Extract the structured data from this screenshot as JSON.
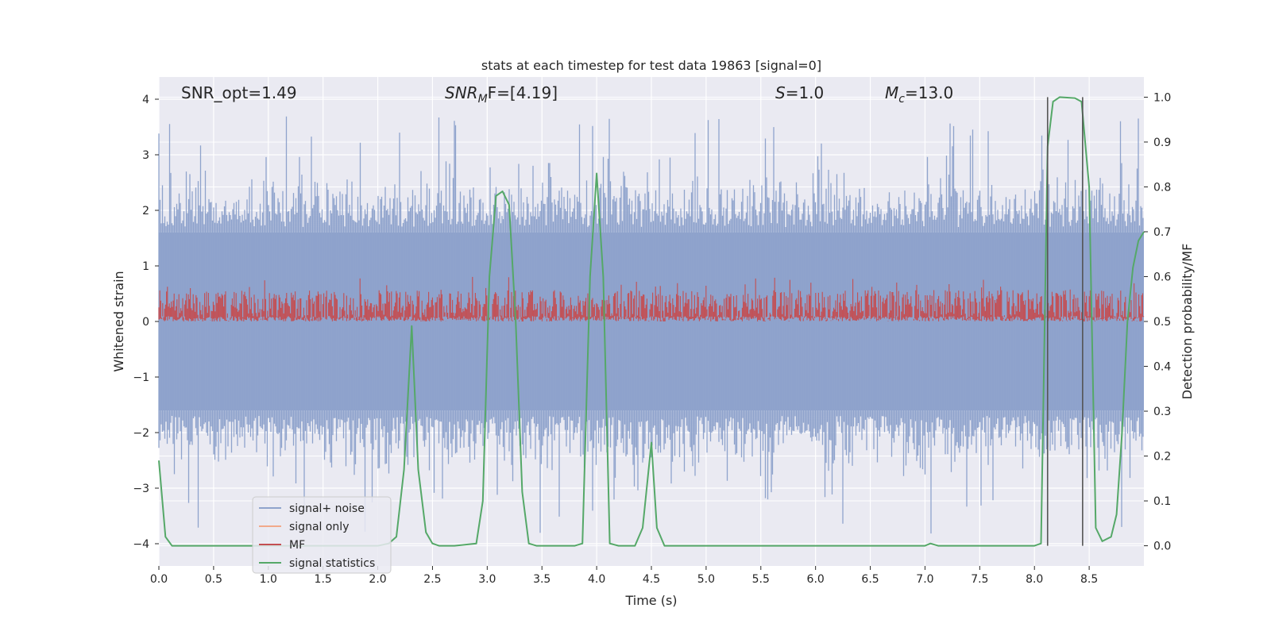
{
  "chart_data": {
    "type": "line",
    "title": "stats at each timestep for test data 19863 [signal=0]",
    "xlabel": "Time (s)",
    "ylabel": "Whitened strain",
    "y2label": "Detection probability/MF",
    "xlim": [
      0,
      9
    ],
    "ylim": [
      -4.4,
      4.4
    ],
    "y2lim": [
      -0.045,
      1.045
    ],
    "xticks": [
      0.0,
      0.5,
      1.0,
      1.5,
      2.0,
      2.5,
      3.0,
      3.5,
      4.0,
      4.5,
      5.0,
      5.5,
      6.0,
      6.5,
      7.0,
      7.5,
      8.0,
      8.5
    ],
    "xtick_labels": [
      "0.0",
      "0.5",
      "1.0",
      "1.5",
      "2.0",
      "2.5",
      "3.0",
      "3.5",
      "4.0",
      "4.5",
      "5.0",
      "5.5",
      "6.0",
      "6.5",
      "7.0",
      "7.5",
      "8.0",
      "8.5"
    ],
    "yticks": [
      4,
      3,
      2,
      1,
      0,
      -1,
      -2,
      -3,
      -4
    ],
    "ytick_labels": [
      "4",
      "3",
      "2",
      "1",
      "0",
      "−1",
      "−2",
      "−3",
      "−4"
    ],
    "y2ticks": [
      1.0,
      0.9,
      0.8,
      0.7,
      0.6,
      0.5,
      0.4,
      0.3,
      0.2,
      0.1,
      0.0
    ],
    "y2tick_labels": [
      "1.0",
      "0.9",
      "0.8",
      "0.7",
      "0.6",
      "0.5",
      "0.4",
      "0.3",
      "0.2",
      "0.1",
      "0.0"
    ],
    "annotations": {
      "snr_opt": "SNR_opt=1.49",
      "snr_mf_main": "SNR",
      "snr_mf_sub": "M",
      "snr_mf_rest": "F=[4.19]",
      "s_main": "S",
      "s_rest": "=1.0",
      "mc_main": "M",
      "mc_sub": "c",
      "mc_rest": "=13.0"
    },
    "legend": [
      {
        "label": "signal+ noise",
        "color": "#8fa3cc"
      },
      {
        "label": "signal only",
        "color": "#f2a98a"
      },
      {
        "label": "MF",
        "color": "#c44e52"
      },
      {
        "label": "signal statistics",
        "color": "#55a868"
      }
    ],
    "legend_position": "lower-left",
    "series": [
      {
        "name": "signal statistics",
        "axis": "right",
        "color": "#55a868",
        "x": [
          0.0,
          0.06,
          0.12,
          0.18,
          0.5,
          1.0,
          1.5,
          2.0,
          2.1,
          2.17,
          2.24,
          2.31,
          2.37,
          2.44,
          2.5,
          2.56,
          2.7,
          2.9,
          2.96,
          3.02,
          3.08,
          3.14,
          3.2,
          3.26,
          3.32,
          3.38,
          3.45,
          3.5,
          3.8,
          3.87,
          3.94,
          4.0,
          4.06,
          4.12,
          4.2,
          4.35,
          4.42,
          4.5,
          4.55,
          4.62,
          5.0,
          6.0,
          7.0,
          7.05,
          7.12,
          7.2,
          8.0,
          8.06,
          8.12,
          8.17,
          8.23,
          8.37,
          8.43,
          8.5,
          8.56,
          8.62,
          8.7,
          8.75,
          8.8,
          8.85,
          8.9,
          8.95,
          9.0
        ],
        "values": [
          0.19,
          0.02,
          0.0,
          0.0,
          0.0,
          0.0,
          0.0,
          0.0,
          0.005,
          0.02,
          0.17,
          0.49,
          0.17,
          0.03,
          0.005,
          0.0,
          0.0,
          0.005,
          0.1,
          0.6,
          0.78,
          0.79,
          0.76,
          0.5,
          0.12,
          0.005,
          0.0,
          0.0,
          0.0,
          0.005,
          0.6,
          0.83,
          0.6,
          0.005,
          0.0,
          0.0,
          0.04,
          0.23,
          0.04,
          0.0,
          0.0,
          0.0,
          0.0,
          0.005,
          0.0,
          0.0,
          0.0,
          0.005,
          0.89,
          0.99,
          1.0,
          0.998,
          0.99,
          0.8,
          0.04,
          0.01,
          0.02,
          0.07,
          0.25,
          0.5,
          0.62,
          0.68,
          0.7
        ]
      },
      {
        "name": "trigger markers",
        "axis": "right",
        "color": "#555555",
        "x": [
          8.12,
          8.44
        ],
        "values": [
          1.0,
          1.0
        ]
      }
    ],
    "noise_series": {
      "name": "signal+ noise",
      "axis": "left",
      "description": "dense whitened strain samples",
      "typical_range": [
        -1.6,
        1.6
      ],
      "peak_range": [
        -4.0,
        3.7
      ]
    },
    "mf_series": {
      "name": "MF",
      "axis": "right",
      "typical_range": [
        0.5,
        0.57
      ],
      "peak": 0.6
    }
  }
}
